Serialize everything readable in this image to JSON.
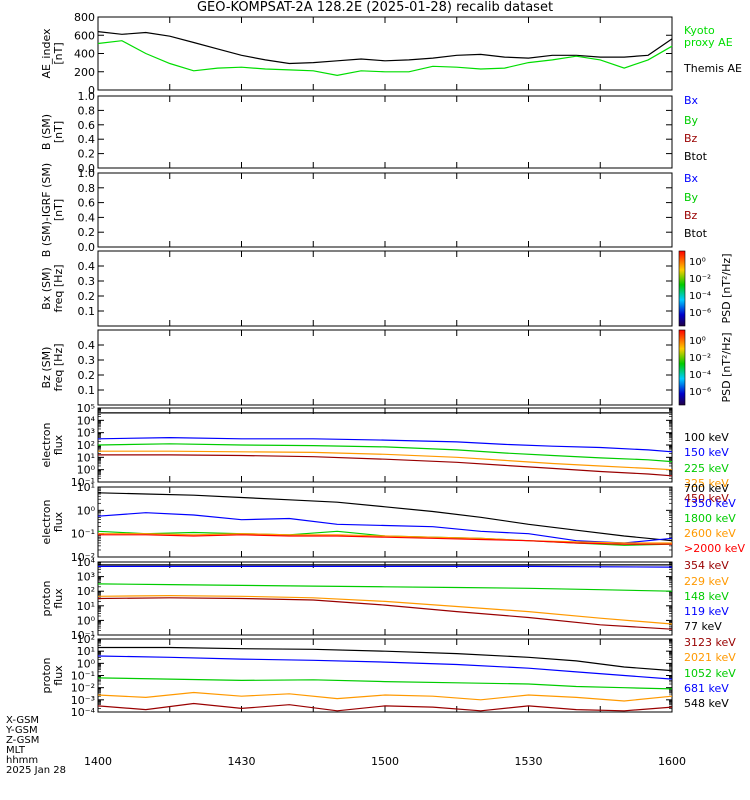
{
  "title": "GEO-KOMPSAT-2A 128.2E (2025-01-28) recalib dataset",
  "footer": {
    "rows": [
      "X-GSM",
      "Y-GSM",
      "Z-GSM",
      "MLT",
      "hhmm",
      "2025 Jan 28"
    ]
  },
  "x_ticks": [
    "1400",
    "1430",
    "1500",
    "1530",
    "1600"
  ],
  "colors": {
    "black": "#000000",
    "blue": "#0000ff",
    "green": "#00cc00",
    "orange": "#ff9900",
    "red": "#990000",
    "kyoto": "#00dd00"
  },
  "chart_data": [
    {
      "type": "line",
      "id": "ae",
      "ylabel": [
        "AE_index",
        "[nT]"
      ],
      "ylim": [
        0,
        800
      ],
      "yticks": [
        "0",
        "200",
        "400",
        "600",
        "800"
      ],
      "legend": [
        {
          "label": "Kyoto",
          "color": "#00dd00"
        },
        {
          "label": "proxy AE",
          "color": "#00dd00"
        },
        {
          "label": "Themis AE",
          "color": "#000000"
        }
      ],
      "series": [
        {
          "name": "Themis AE",
          "color": "#000000",
          "x": [
            0,
            10,
            20,
            30,
            40,
            50,
            60,
            70,
            80,
            90,
            100,
            110,
            120,
            130,
            140,
            150,
            160,
            170,
            180,
            190,
            200,
            210,
            220,
            230,
            240
          ],
          "y": [
            640,
            610,
            630,
            590,
            520,
            450,
            380,
            330,
            290,
            300,
            320,
            340,
            320,
            330,
            350,
            380,
            390,
            360,
            350,
            380,
            380,
            360,
            360,
            380,
            560
          ]
        },
        {
          "name": "Kyoto proxy AE",
          "color": "#00dd00",
          "x": [
            0,
            10,
            20,
            30,
            40,
            50,
            60,
            70,
            80,
            90,
            100,
            110,
            120,
            130,
            140,
            150,
            160,
            170,
            180,
            190,
            200,
            210,
            220,
            230,
            240
          ],
          "y": [
            510,
            540,
            400,
            290,
            210,
            240,
            250,
            230,
            220,
            210,
            160,
            210,
            200,
            200,
            260,
            250,
            230,
            240,
            300,
            330,
            370,
            330,
            240,
            330,
            480
          ]
        }
      ]
    },
    {
      "type": "line",
      "id": "b_sm",
      "ylabel": [
        "B (SM)",
        "[nT]"
      ],
      "ylim": [
        0,
        1
      ],
      "yticks": [
        "0.0",
        "0.2",
        "0.4",
        "0.6",
        "0.8",
        "1.0"
      ],
      "legend": [
        {
          "label": "Bx",
          "color": "#0000ff"
        },
        {
          "label": "By",
          "color": "#00cc00"
        },
        {
          "label": "Bz",
          "color": "#990000"
        },
        {
          "label": "Btot",
          "color": "#000000"
        }
      ],
      "series": []
    },
    {
      "type": "line",
      "id": "b_igrf",
      "ylabel": [
        "B (SM)-IGRF (SM)",
        "[nT]"
      ],
      "ylim": [
        0,
        1
      ],
      "yticks": [
        "0.0",
        "0.2",
        "0.4",
        "0.6",
        "0.8",
        "1.0"
      ],
      "legend": [
        {
          "label": "Bx",
          "color": "#0000ff"
        },
        {
          "label": "By",
          "color": "#00cc00"
        },
        {
          "label": "Bz",
          "color": "#990000"
        },
        {
          "label": "Btot",
          "color": "#000000"
        }
      ],
      "series": []
    },
    {
      "type": "heatmap",
      "id": "bx_spec",
      "ylabel": [
        "Bx (SM)",
        "freq [Hz]"
      ],
      "ylim": [
        0,
        0.5
      ],
      "yticks": [
        "0.1",
        "0.2",
        "0.3",
        "0.4"
      ],
      "colorbar": {
        "label": "PSD [nT²/Hz]",
        "ticks": [
          "10⁰",
          "10⁻²",
          "10⁻⁴",
          "10⁻⁶"
        ]
      },
      "values": []
    },
    {
      "type": "heatmap",
      "id": "bz_spec",
      "ylabel": [
        "Bz (SM)",
        "freq [Hz]"
      ],
      "ylim": [
        0,
        0.5
      ],
      "yticks": [
        "0.1",
        "0.2",
        "0.3",
        "0.4"
      ],
      "colorbar": {
        "label": "PSD [nT²/Hz]",
        "ticks": [
          "10⁰",
          "10⁻²",
          "10⁻⁴",
          "10⁻⁶"
        ]
      },
      "values": []
    },
    {
      "type": "line",
      "id": "e_low",
      "ylabel": [
        "electron",
        "flux"
      ],
      "log": true,
      "ylim_exp": [
        -1,
        5
      ],
      "yticks": [
        "10⁻¹",
        "10⁰",
        "10¹",
        "10²",
        "10³",
        "10⁴",
        "10⁵"
      ],
      "legend": [
        {
          "label": "100 keV",
          "color": "#000000"
        },
        {
          "label": "150 keV",
          "color": "#0000ff"
        },
        {
          "label": "225 keV",
          "color": "#00cc00"
        },
        {
          "label": "325 keV",
          "color": "#ff9900"
        },
        {
          "label": "450 keV",
          "color": "#990000"
        }
      ],
      "series": [
        {
          "name": "100 keV",
          "color": "#000000",
          "x": [
            0,
            60,
            120,
            180,
            240
          ],
          "y": [
            4.6,
            4.6,
            4.6,
            4.6,
            4.6
          ]
        },
        {
          "name": "150 keV",
          "color": "#0000ff",
          "x": [
            0,
            30,
            60,
            90,
            120,
            150,
            170,
            190,
            210,
            230,
            240
          ],
          "y": [
            2.5,
            2.6,
            2.5,
            2.5,
            2.4,
            2.25,
            2.05,
            1.9,
            1.8,
            1.6,
            1.45
          ]
        },
        {
          "name": "225 keV",
          "color": "#00cc00",
          "x": [
            0,
            30,
            60,
            90,
            120,
            150,
            170,
            190,
            210,
            230,
            240
          ],
          "y": [
            2.0,
            2.1,
            2.0,
            1.95,
            1.85,
            1.6,
            1.35,
            1.15,
            0.95,
            0.8,
            0.65
          ]
        },
        {
          "name": "325 keV",
          "color": "#ff9900",
          "x": [
            0,
            30,
            60,
            90,
            120,
            150,
            170,
            190,
            210,
            230,
            240
          ],
          "y": [
            1.5,
            1.5,
            1.45,
            1.4,
            1.25,
            1.0,
            0.75,
            0.5,
            0.3,
            0.1,
            0.0
          ]
        },
        {
          "name": "450 keV",
          "color": "#990000",
          "x": [
            0,
            30,
            60,
            90,
            120,
            150,
            170,
            190,
            210,
            230,
            240
          ],
          "y": [
            1.2,
            1.2,
            1.15,
            1.05,
            0.85,
            0.6,
            0.35,
            0.1,
            -0.15,
            -0.35,
            -0.5
          ]
        }
      ]
    },
    {
      "type": "line",
      "id": "e_high",
      "ylabel": [
        "electron",
        "flux"
      ],
      "log": true,
      "ylim_exp": [
        -2,
        1
      ],
      "yticks": [
        "10⁻²",
        "10⁻¹",
        "10⁰",
        "10¹"
      ],
      "legend": [
        {
          "label": "700 keV",
          "color": "#000000"
        },
        {
          "label": "1350 keV",
          "color": "#0000ff"
        },
        {
          "label": "1800 keV",
          "color": "#00cc00"
        },
        {
          "label": "2600 keV",
          "color": "#ff9900"
        },
        {
          "label": ">2000 keV",
          "color": "#ff0000"
        }
      ],
      "series": [
        {
          "name": "700 keV",
          "color": "#000000",
          "x": [
            0,
            20,
            40,
            60,
            80,
            100,
            120,
            140,
            160,
            180,
            200,
            220,
            240
          ],
          "y": [
            0.75,
            0.7,
            0.65,
            0.55,
            0.45,
            0.35,
            0.15,
            -0.05,
            -0.3,
            -0.6,
            -0.85,
            -1.1,
            -1.3
          ]
        },
        {
          "name": "1350 keV",
          "color": "#0000ff",
          "x": [
            0,
            20,
            40,
            60,
            80,
            100,
            120,
            140,
            160,
            180,
            200,
            220,
            240
          ],
          "y": [
            -0.25,
            -0.1,
            -0.2,
            -0.4,
            -0.35,
            -0.6,
            -0.65,
            -0.7,
            -0.9,
            -1.0,
            -1.3,
            -1.4,
            -1.2
          ]
        },
        {
          "name": "1800 keV",
          "color": "#00cc00",
          "x": [
            0,
            20,
            40,
            60,
            80,
            100,
            120,
            140,
            160,
            180,
            200,
            220,
            240
          ],
          "y": [
            -0.9,
            -1.0,
            -0.95,
            -1.0,
            -1.05,
            -0.9,
            -1.1,
            -1.15,
            -1.2,
            -1.3,
            -1.4,
            -1.5,
            -1.45
          ]
        },
        {
          "name": "2600 keV",
          "color": "#ff9900",
          "x": [
            0,
            20,
            40,
            60,
            80,
            100,
            120,
            140,
            160,
            180,
            200,
            220,
            240
          ],
          "y": [
            -1.0,
            -1.0,
            -1.05,
            -1.0,
            -1.05,
            -1.05,
            -1.1,
            -1.15,
            -1.2,
            -1.3,
            -1.35,
            -1.4,
            -1.4
          ]
        },
        {
          "name": ">2000 keV",
          "color": "#ff0000",
          "x": [
            0,
            20,
            40,
            60,
            80,
            100,
            120,
            140,
            160,
            180,
            200,
            220,
            240
          ],
          "y": [
            -1.05,
            -1.05,
            -1.1,
            -1.05,
            -1.1,
            -1.1,
            -1.15,
            -1.2,
            -1.25,
            -1.3,
            -1.4,
            -1.45,
            -1.45
          ]
        }
      ]
    },
    {
      "type": "line",
      "id": "p_low",
      "ylabel": [
        "proton",
        "flux"
      ],
      "log": true,
      "ylim_exp": [
        -1,
        4
      ],
      "yticks": [
        "10⁻¹",
        "10⁰",
        "10¹",
        "10²",
        "10³",
        "10⁴"
      ],
      "legend": [
        {
          "label": "354 keV",
          "color": "#990000"
        },
        {
          "label": "229 keV",
          "color": "#ff9900"
        },
        {
          "label": "148 keV",
          "color": "#00cc00"
        },
        {
          "label": "119 keV",
          "color": "#0000ff"
        },
        {
          "label": "77 keV",
          "color": "#000000"
        }
      ],
      "series": [
        {
          "name": "77 keV",
          "color": "#000000",
          "x": [
            0,
            60,
            120,
            180,
            240
          ],
          "y": [
            3.8,
            3.8,
            3.8,
            3.8,
            3.8
          ]
        },
        {
          "name": "119 keV",
          "color": "#0000ff",
          "x": [
            0,
            60,
            120,
            180,
            240
          ],
          "y": [
            3.7,
            3.7,
            3.7,
            3.7,
            3.65
          ]
        },
        {
          "name": "148 keV",
          "color": "#00cc00",
          "x": [
            0,
            30,
            60,
            90,
            120,
            150,
            180,
            210,
            240
          ],
          "y": [
            2.5,
            2.45,
            2.4,
            2.35,
            2.3,
            2.25,
            2.2,
            2.1,
            2.0
          ]
        },
        {
          "name": "229 keV",
          "color": "#ff9900",
          "x": [
            0,
            30,
            60,
            90,
            120,
            150,
            180,
            210,
            240
          ],
          "y": [
            1.65,
            1.7,
            1.65,
            1.55,
            1.3,
            0.95,
            0.6,
            0.15,
            -0.25
          ]
        },
        {
          "name": "354 keV",
          "color": "#990000",
          "x": [
            0,
            30,
            60,
            90,
            120,
            150,
            180,
            210,
            240
          ],
          "y": [
            1.5,
            1.55,
            1.5,
            1.4,
            1.05,
            0.6,
            0.2,
            -0.3,
            -0.6
          ]
        }
      ]
    },
    {
      "type": "line",
      "id": "p_high",
      "ylabel": [
        "proton",
        "flux"
      ],
      "log": true,
      "ylim_exp": [
        -4,
        2
      ],
      "yticks": [
        "10⁻⁴",
        "10⁻³",
        "10⁻²",
        "10⁻¹",
        "10⁰",
        "10¹",
        "10²"
      ],
      "legend": [
        {
          "label": "3123 keV",
          "color": "#990000"
        },
        {
          "label": "2021 keV",
          "color": "#ff9900"
        },
        {
          "label": "1052 keV",
          "color": "#00cc00"
        },
        {
          "label": "681 keV",
          "color": "#0000ff"
        },
        {
          "label": "548 keV",
          "color": "#000000"
        }
      ],
      "series": [
        {
          "name": "548 keV",
          "color": "#000000",
          "x": [
            0,
            30,
            60,
            90,
            120,
            150,
            180,
            200,
            220,
            240
          ],
          "y": [
            1.3,
            1.3,
            1.2,
            1.15,
            1.0,
            0.8,
            0.5,
            0.2,
            -0.3,
            -0.6
          ]
        },
        {
          "name": "681 keV",
          "color": "#0000ff",
          "x": [
            0,
            30,
            60,
            90,
            120,
            150,
            180,
            200,
            220,
            240
          ],
          "y": [
            0.6,
            0.5,
            0.35,
            0.25,
            0.1,
            -0.1,
            -0.4,
            -0.7,
            -1.0,
            -1.3
          ]
        },
        {
          "name": "1052 keV",
          "color": "#00cc00",
          "x": [
            0,
            30,
            60,
            90,
            120,
            150,
            180,
            200,
            220,
            240
          ],
          "y": [
            -1.2,
            -1.3,
            -1.4,
            -1.35,
            -1.5,
            -1.6,
            -1.7,
            -1.9,
            -2.0,
            -2.1
          ]
        },
        {
          "name": "2021 keV",
          "color": "#ff9900",
          "x": [
            0,
            20,
            40,
            60,
            80,
            100,
            120,
            140,
            160,
            180,
            200,
            220,
            240
          ],
          "y": [
            -2.6,
            -2.8,
            -2.4,
            -2.7,
            -2.5,
            -2.9,
            -2.6,
            -2.7,
            -3.0,
            -2.6,
            -2.8,
            -3.1,
            -2.7
          ]
        },
        {
          "name": "3123 keV",
          "color": "#990000",
          "x": [
            0,
            20,
            40,
            60,
            80,
            100,
            120,
            140,
            160,
            180,
            200,
            220,
            240
          ],
          "y": [
            -3.5,
            -3.8,
            -3.3,
            -3.7,
            -3.4,
            -3.9,
            -3.5,
            -3.6,
            -3.9,
            -3.5,
            -3.8,
            -3.9,
            -3.6
          ]
        }
      ]
    }
  ]
}
